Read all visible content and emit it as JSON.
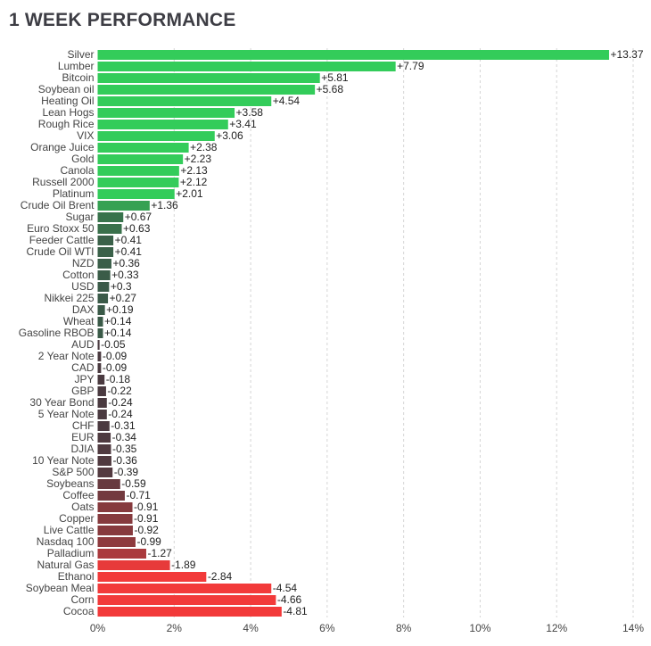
{
  "title": "1 WEEK PERFORMANCE",
  "chart_data": {
    "type": "bar",
    "orientation": "horizontal",
    "title": "1 WEEK PERFORMANCE",
    "xlabel": "",
    "ylabel": "",
    "xlim": [
      0,
      14
    ],
    "x_ticks": [
      0,
      2,
      4,
      6,
      8,
      10,
      12,
      14
    ],
    "x_tick_labels": [
      "0%",
      "2%",
      "4%",
      "6%",
      "8%",
      "10%",
      "12%",
      "14%"
    ],
    "grid": "vertical dashed",
    "categories": [
      "Silver",
      "Lumber",
      "Bitcoin",
      "Soybean oil",
      "Heating Oil",
      "Lean Hogs",
      "Rough Rice",
      "VIX",
      "Orange Juice",
      "Gold",
      "Canola",
      "Russell 2000",
      "Platinum",
      "Crude Oil Brent",
      "Sugar",
      "Euro Stoxx 50",
      "Feeder Cattle",
      "Crude Oil WTI",
      "NZD",
      "Cotton",
      "USD",
      "Nikkei 225",
      "DAX",
      "Wheat",
      "Gasoline RBOB",
      "AUD",
      "2 Year Note",
      "CAD",
      "JPY",
      "GBP",
      "30 Year Bond",
      "5 Year Note",
      "CHF",
      "EUR",
      "DJIA",
      "10 Year Note",
      "S&P 500",
      "Soybeans",
      "Coffee",
      "Oats",
      "Copper",
      "Live Cattle",
      "Nasdaq 100",
      "Palladium",
      "Natural Gas",
      "Ethanol",
      "Soybean Meal",
      "Corn",
      "Cocoa"
    ],
    "values": [
      13.37,
      7.79,
      5.81,
      5.68,
      4.54,
      3.58,
      3.41,
      3.06,
      2.38,
      2.23,
      2.13,
      2.12,
      2.01,
      1.36,
      0.67,
      0.63,
      0.41,
      0.41,
      0.36,
      0.33,
      0.3,
      0.27,
      0.19,
      0.14,
      0.14,
      -0.05,
      -0.09,
      -0.09,
      -0.18,
      -0.22,
      -0.24,
      -0.24,
      -0.31,
      -0.34,
      -0.35,
      -0.36,
      -0.39,
      -0.59,
      -0.71,
      -0.91,
      -0.91,
      -0.92,
      -0.99,
      -1.27,
      -1.89,
      -2.84,
      -4.54,
      -4.66,
      -4.81
    ],
    "value_labels": [
      "+13.37",
      "+7.79",
      "+5.81",
      "+5.68",
      "+4.54",
      "+3.58",
      "+3.41",
      "+3.06",
      "+2.38",
      "+2.23",
      "+2.13",
      "+2.12",
      "+2.01",
      "+1.36",
      "+0.67",
      "+0.63",
      "+0.41",
      "+0.41",
      "+0.36",
      "+0.33",
      "+0.3",
      "+0.27",
      "+0.19",
      "+0.14",
      "+0.14",
      "-0.05",
      "-0.09",
      "-0.09",
      "-0.18",
      "-0.22",
      "-0.24",
      "-0.24",
      "-0.31",
      "-0.34",
      "-0.35",
      "-0.36",
      "-0.39",
      "-0.59",
      "-0.71",
      "-0.91",
      "-0.91",
      "-0.92",
      "-0.99",
      "-1.27",
      "-1.89",
      "-2.84",
      "-4.54",
      "-4.66",
      "-4.81"
    ],
    "bar_length": "absolute value",
    "colors": {
      "positive_strong": "#33cc5a",
      "positive_weak": "#3a5a48",
      "negative_weak": "#4a3a40",
      "negative_strong": "#f23a3a",
      "grid": "#d5d5d5",
      "axis_text": "#444444",
      "value_text": "#222222"
    }
  }
}
